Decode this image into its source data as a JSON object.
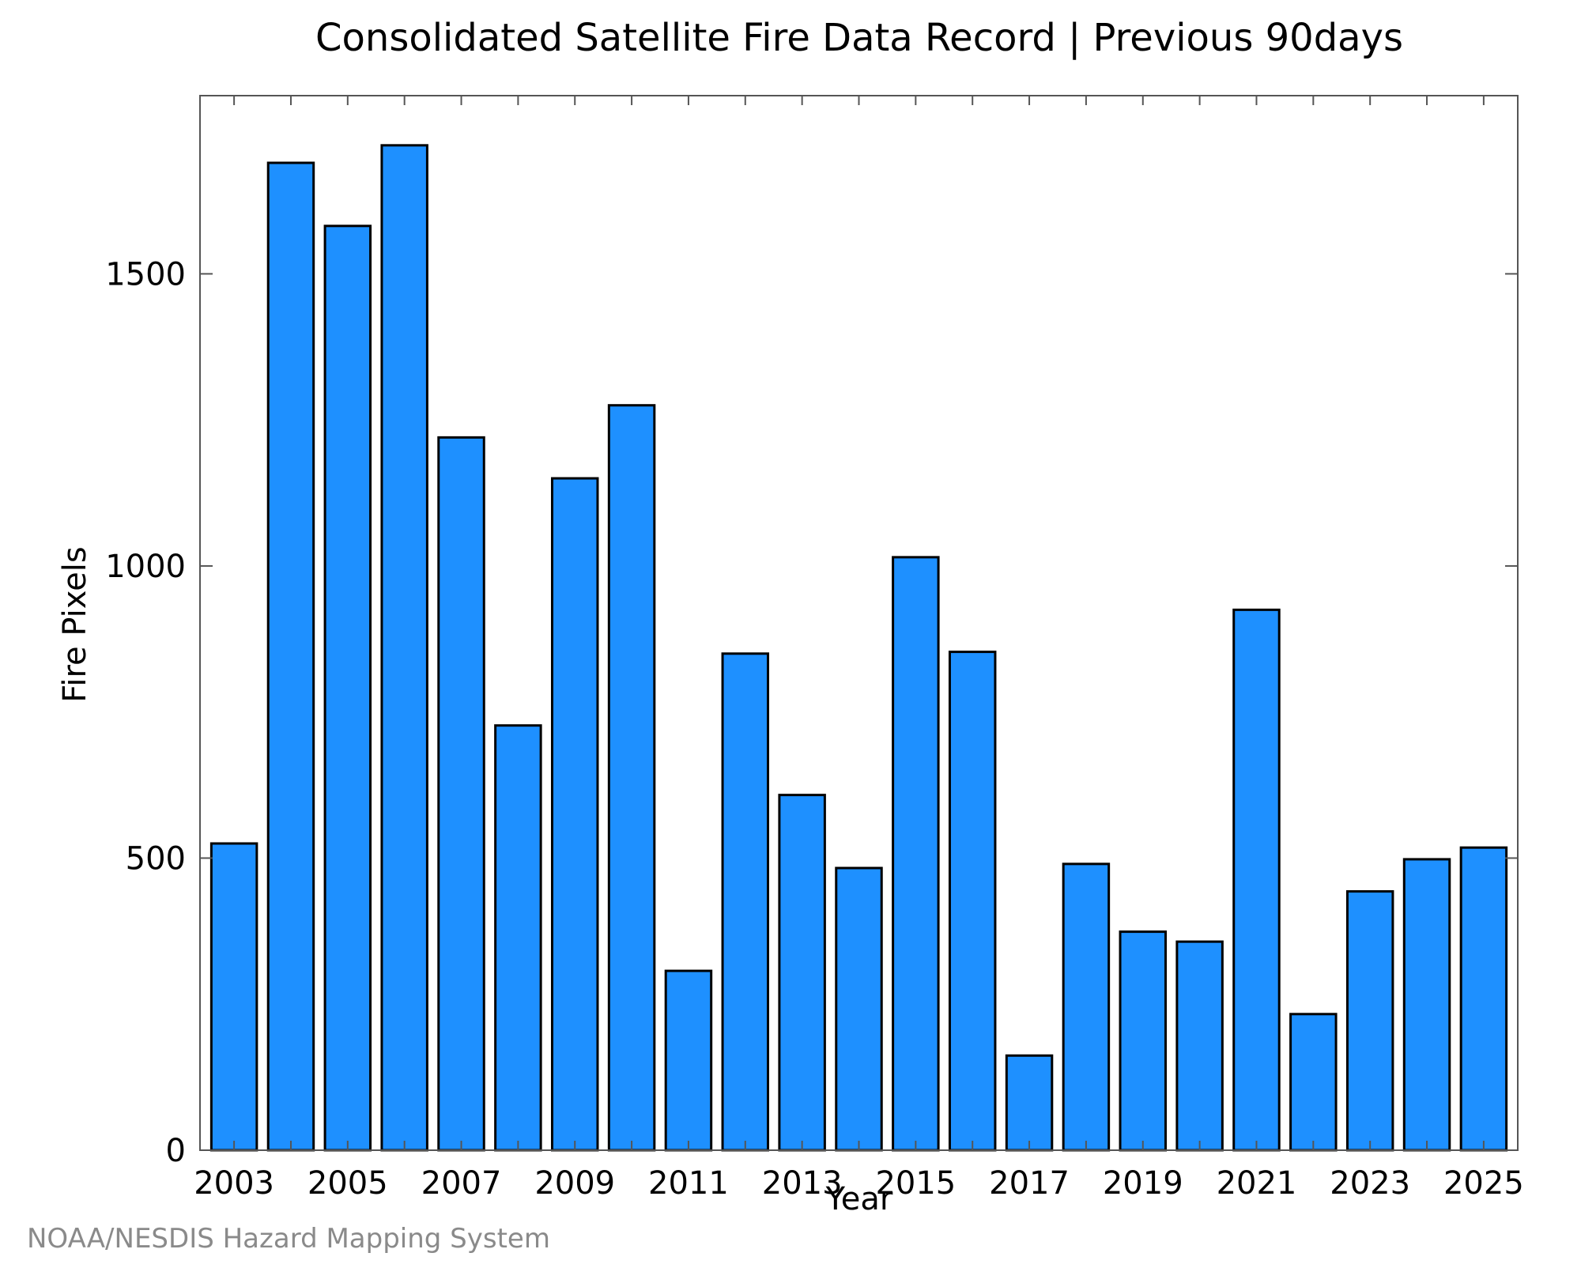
{
  "chart_data": {
    "type": "bar",
    "title": "Consolidated Satellite Fire Data Record | Previous 90days",
    "xlabel": "Year",
    "ylabel": "Fire Pixels",
    "credit": "NOAA/NESDIS Hazard Mapping System",
    "categories": [
      "2003",
      "2004",
      "2005",
      "2006",
      "2007",
      "2008",
      "2009",
      "2010",
      "2011",
      "2012",
      "2013",
      "2014",
      "2015",
      "2016",
      "2017",
      "2018",
      "2019",
      "2020",
      "2021",
      "2022",
      "2023",
      "2024",
      "2025"
    ],
    "values": [
      525,
      1690,
      1582,
      1720,
      1220,
      727,
      1150,
      1275,
      307,
      850,
      608,
      483,
      1015,
      853,
      162,
      490,
      374,
      357,
      925,
      233,
      443,
      498,
      518
    ],
    "x_tick_labels": [
      "2003",
      "2005",
      "2007",
      "2009",
      "2011",
      "2013",
      "2015",
      "2017",
      "2019",
      "2021",
      "2023",
      "2025"
    ],
    "y_ticks": [
      0,
      500,
      1000,
      1500
    ],
    "ylim": [
      0,
      1805
    ],
    "bar_color": "#1e90ff",
    "bar_edge_color": "#000000",
    "grid": false,
    "legend": "none"
  }
}
